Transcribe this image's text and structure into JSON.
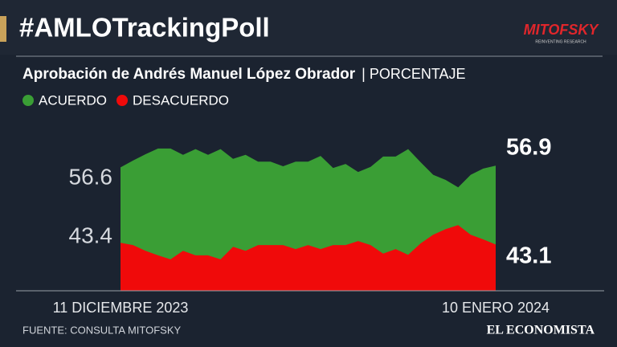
{
  "header": {
    "title": "#AMLOTrackingPoll",
    "logo": "MITOFSKY",
    "logo_tagline": "REINVENTING RESEARCH"
  },
  "chart_data": {
    "type": "area",
    "title": "Aprobación de Andrés Manuel López Obrador",
    "subtitle": "| PORCENTAJE",
    "categories": [
      "11 DICIEMBRE 2023",
      null,
      null,
      null,
      null,
      null,
      null,
      null,
      null,
      null,
      null,
      null,
      null,
      null,
      null,
      null,
      null,
      null,
      null,
      null,
      null,
      null,
      null,
      null,
      null,
      null,
      null,
      null,
      null,
      null,
      "10 ENERO 2024"
    ],
    "ylim": [
      35,
      62
    ],
    "series": [
      {
        "name": "ACUERDO",
        "color": "#3a9e35",
        "values": [
          56.6,
          57.8,
          58.9,
          59.9,
          59.9,
          58.8,
          59.8,
          58.8,
          59.8,
          58.1,
          58.8,
          57.6,
          57.6,
          56.8,
          57.6,
          57.6,
          58.6,
          56.5,
          57.2,
          55.8,
          56.7,
          58.5,
          58.5,
          59.8,
          57.5,
          55.3,
          54.4,
          53.1,
          55.3,
          56.4,
          56.9
        ]
      },
      {
        "name": "DESACUERDO",
        "color": "#f00a0a",
        "values": [
          43.4,
          43.0,
          42.0,
          41.2,
          40.5,
          42.0,
          41.2,
          41.2,
          40.5,
          42.7,
          42.0,
          43.0,
          43.0,
          43.0,
          42.3,
          43.0,
          42.3,
          43.0,
          43.0,
          43.7,
          43.0,
          41.5,
          42.3,
          41.3,
          43.3,
          44.8,
          45.8,
          46.5,
          44.8,
          44.0,
          43.1
        ]
      }
    ]
  },
  "footer": {
    "source": "FUENTE: CONSULTA MITOFSKY",
    "brand": "EL ECONOMISTA"
  }
}
